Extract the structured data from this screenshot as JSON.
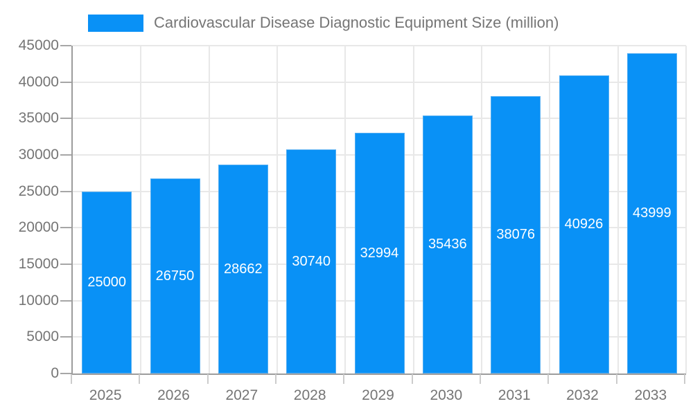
{
  "chart_data": {
    "type": "bar",
    "title": "Cardiovascular Disease Diagnostic Equipment Size (million)",
    "legend_label": "Cardiovascular Disease Diagnostic Equipment Size (million)",
    "legend_position": "top",
    "categories": [
      "2025",
      "2026",
      "2027",
      "2028",
      "2029",
      "2030",
      "2031",
      "2032",
      "2033"
    ],
    "series": [
      {
        "name": "Cardiovascular Disease Diagnostic Equipment Size (million)",
        "values": [
          25000,
          26750,
          28662,
          30740,
          32994,
          35436,
          38076,
          40926,
          43999
        ]
      }
    ],
    "value_labels": [
      "25000",
      "26750",
      "28662",
      "30740",
      "32994",
      "35436",
      "38076",
      "40926",
      "43999"
    ],
    "xlabel": "",
    "ylabel": "",
    "ylim": [
      0,
      45000
    ],
    "ytick_step": 5000,
    "ytick_labels": [
      "0",
      "5000",
      "10000",
      "15000",
      "20000",
      "25000",
      "30000",
      "35000",
      "40000",
      "45000"
    ],
    "grid": true,
    "colors": {
      "bar_fill": "#0991f6",
      "bar_edge": "#54aef2",
      "gridline": "#e8e8e8",
      "axis_line": "#9c9c9c",
      "axis_text": "#757575",
      "value_label_text": "#ffffff",
      "background": "#ffffff"
    }
  }
}
